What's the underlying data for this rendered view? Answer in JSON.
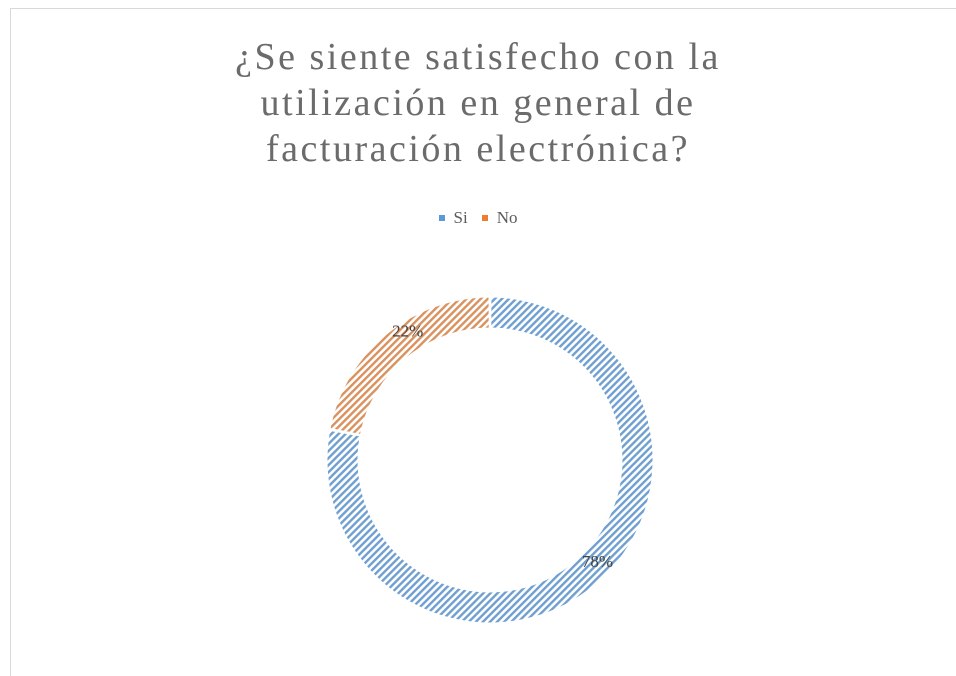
{
  "chart_data": {
    "type": "pie",
    "variant": "donut",
    "title": "¿Se siente satisfecho con la\nutilización en general de\nfacturación electrónica?",
    "categories": [
      "Si",
      "No"
    ],
    "values": [
      78,
      22
    ],
    "data_labels": [
      "78%",
      "22%"
    ],
    "colors": [
      "#9dc3e6",
      "#f4b183"
    ],
    "stroke_colors": [
      "#6f9fd0",
      "#d9915e"
    ],
    "legend_swatch_colors": [
      "#5a9bd5",
      "#ed7d31"
    ],
    "fill_pattern": "diagonal-hatch",
    "legend_position": "top"
  }
}
